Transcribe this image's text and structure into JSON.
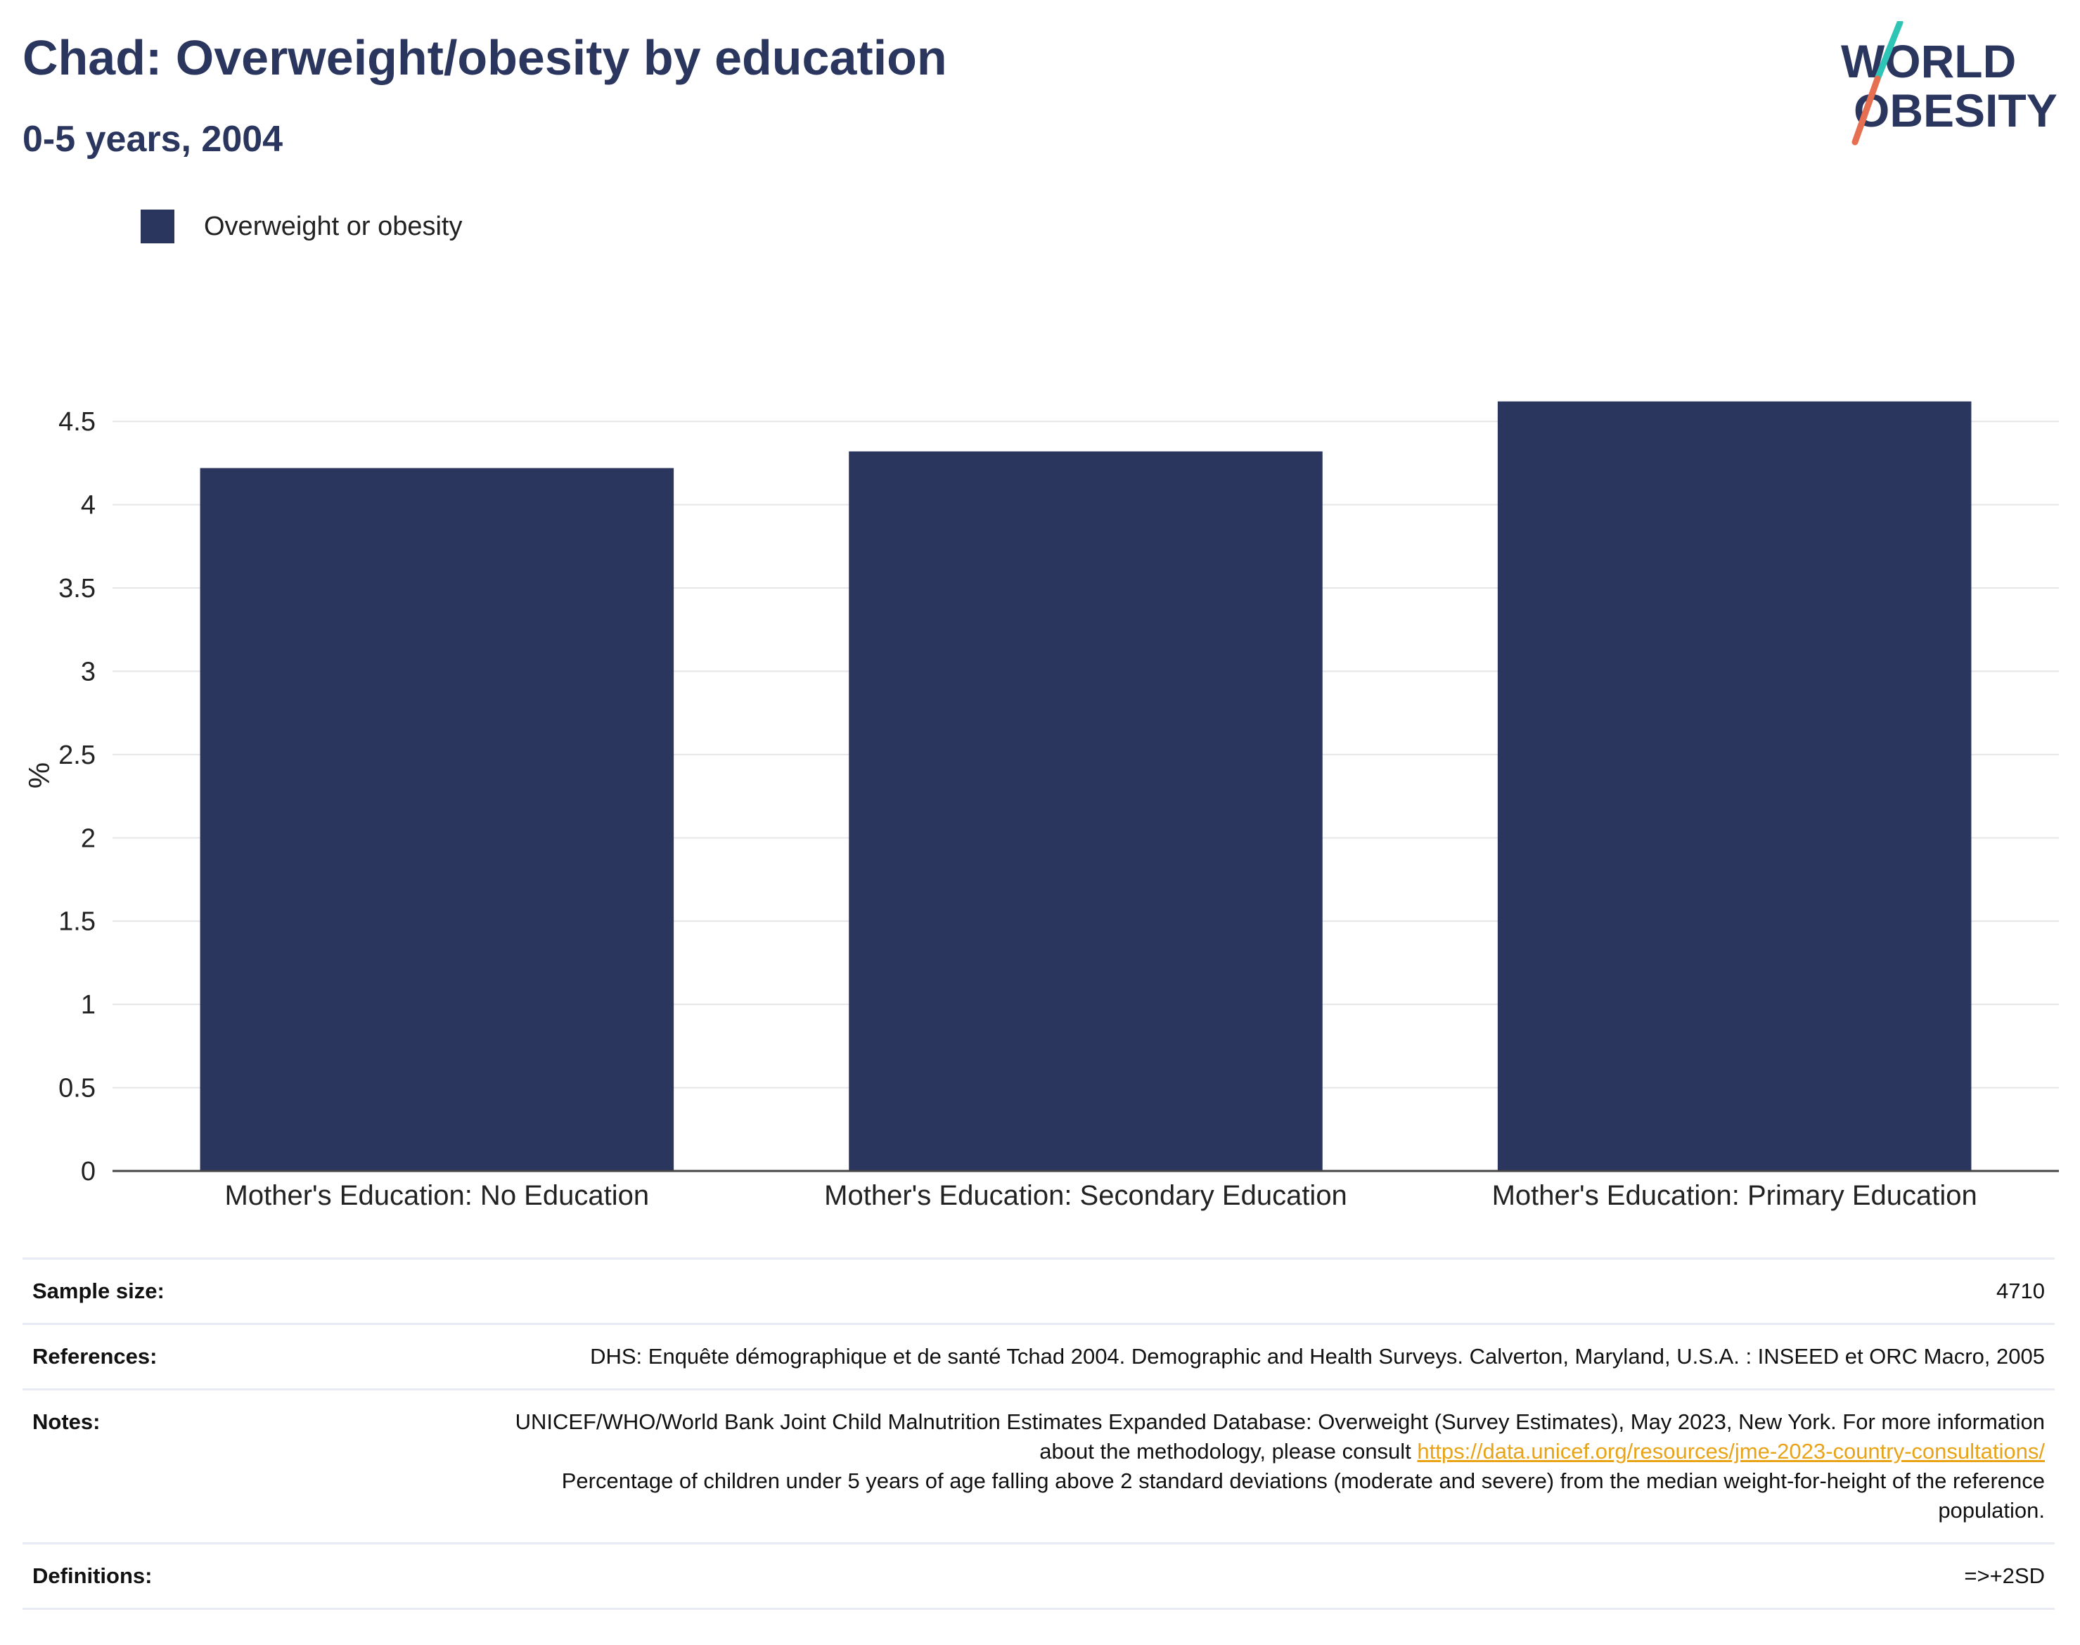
{
  "header": {
    "title": "Chad: Overweight/obesity by education",
    "subtitle": "0-5 years, 2004"
  },
  "logo": {
    "line1": "WORLD",
    "line2": "OBESITY",
    "colors": {
      "text": "#2b365f",
      "slash_top": "#2ec4b6",
      "slash_bottom": "#e76f51"
    }
  },
  "legend": {
    "label": "Overweight or obesity",
    "color": "#2b365f"
  },
  "chart_data": {
    "type": "bar",
    "categories": [
      "Mother's Education: No Education",
      "Mother's Education: Secondary Education",
      "Mother's Education: Primary Education"
    ],
    "series": [
      {
        "name": "Overweight or obesity",
        "values": [
          4.22,
          4.32,
          4.62
        ],
        "color": "#2b365f"
      }
    ],
    "title": "Chad: Overweight/obesity by education",
    "subtitle": "0-5 years, 2004",
    "xlabel": "",
    "ylabel": "%",
    "ylim": [
      0,
      4.75
    ],
    "yticks": [
      0,
      0.5,
      1,
      1.5,
      2,
      2.5,
      3,
      3.5,
      4,
      4.5
    ],
    "ytick_labels": [
      "0",
      "0.5",
      "1",
      "1.5",
      "2",
      "2.5",
      "3",
      "3.5",
      "4",
      "4.5"
    ],
    "grid": true,
    "legend_position": "top-left"
  },
  "info": {
    "sample_size": {
      "label": "Sample size:",
      "value": "4710"
    },
    "references": {
      "label": "References:",
      "value": "DHS: Enquête démographique et de santé Tchad 2004. Demographic and Health Surveys. Calverton, Maryland, U.S.A. : INSEED et ORC Macro, 2005"
    },
    "notes": {
      "label": "Notes:",
      "text_before": "UNICEF/WHO/World Bank Joint Child Malnutrition Estimates Expanded Database: Overweight (Survey Estimates), May 2023, New York. For more information about the methodology, please consult ",
      "link": "https://data.unicef.org/resources/jme-2023-country-consultations/",
      "text_after": "Percentage of children under 5 years of age falling above 2 standard deviations (moderate and severe) from the median weight-for-height of the reference population."
    },
    "definitions": {
      "label": "Definitions:",
      "value": "=>+2SD"
    }
  }
}
